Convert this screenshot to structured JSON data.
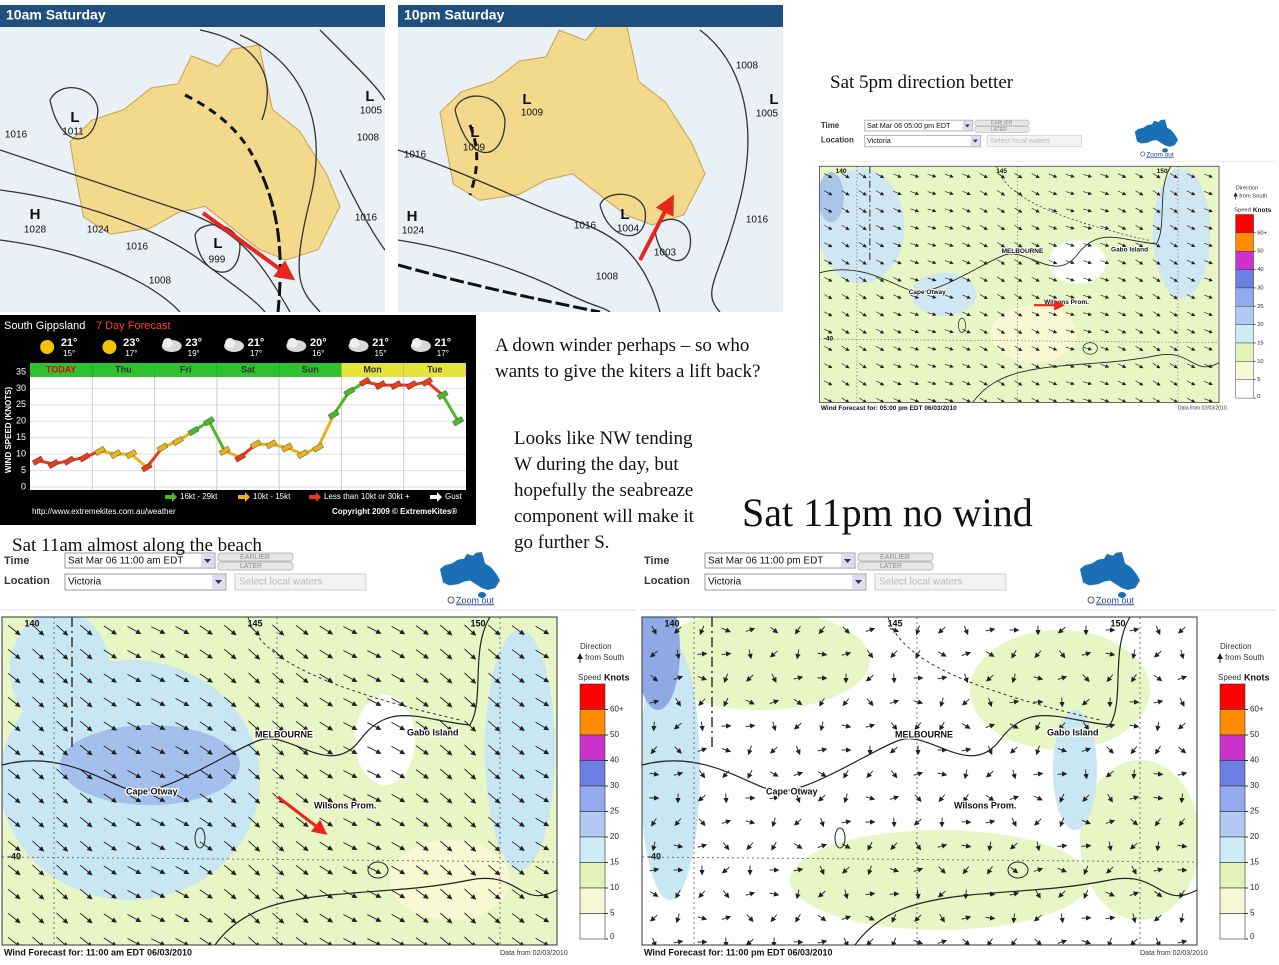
{
  "synoptic_charts": [
    {
      "title": "10am Saturday",
      "labels": [
        "L",
        1011,
        1016,
        "H",
        1028,
        1024,
        1016,
        1008,
        "L",
        999,
        "L",
        1005,
        1008,
        1016
      ]
    },
    {
      "title": "10pm Saturday",
      "labels": [
        "L",
        1009,
        "L",
        1009,
        1016,
        "H",
        1024,
        1016,
        "L",
        1004,
        1008,
        "L",
        1005,
        1008,
        1016,
        1003
      ]
    }
  ],
  "forecast": {
    "title": "South Gippsland",
    "subtitle": "7 Day Forecast",
    "days": [
      {
        "name": "TODAY",
        "high": "21°",
        "low": "15°",
        "color": "#2fc12f"
      },
      {
        "name": "Thu",
        "high": "23°",
        "low": "17°",
        "color": "#2fc12f"
      },
      {
        "name": "Fri",
        "high": "23°",
        "low": "19°",
        "color": "#2fc12f"
      },
      {
        "name": "Sat",
        "high": "21°",
        "low": "17°",
        "color": "#2fc12f"
      },
      {
        "name": "Sun",
        "high": "20°",
        "low": "16°",
        "color": "#2fc12f"
      },
      {
        "name": "Mon",
        "high": "21°",
        "low": "15°",
        "color": "#e4e43a"
      },
      {
        "name": "Tue",
        "high": "21°",
        "low": "17°",
        "color": "#e4e43a"
      }
    ],
    "y_label": "WIND SPEED (KNOTS)",
    "ylim": [
      0,
      35
    ],
    "yticks": [
      0,
      5,
      10,
      15,
      20,
      25,
      30,
      35
    ],
    "wind_speed": [
      8,
      7,
      8,
      9,
      11,
      10,
      10,
      6,
      12,
      14,
      17,
      20,
      11,
      9,
      13,
      13,
      12,
      10,
      12,
      22,
      29,
      32,
      31,
      31,
      31,
      32,
      28,
      20
    ],
    "wind_colors": [
      "#e63b1e",
      "#e63b1e",
      "#e63b1e",
      "#e63b1e",
      "#e8b21a",
      "#e8b21a",
      "#e8b21a",
      "#e63b1e",
      "#e8b21a",
      "#e8b21a",
      "#4cb82a",
      "#4cb82a",
      "#e8b21a",
      "#e63b1e",
      "#e8b21a",
      "#e8b21a",
      "#e8b21a",
      "#e8b21a",
      "#e8b21a",
      "#4cb82a",
      "#4cb82a",
      "#e63b1e",
      "#e63b1e",
      "#e63b1e",
      "#e63b1e",
      "#e63b1e",
      "#4cb82a",
      "#4cb82a"
    ],
    "legend": [
      {
        "label": "16kt - 29kt",
        "color": "#4cb82a"
      },
      {
        "label": "10kt - 15kt",
        "color": "#e8b21a"
      },
      {
        "label": "Less than 10kt or 30kt +",
        "color": "#e63b1e"
      },
      {
        "label": "Gust",
        "color": "#ffffff"
      }
    ],
    "url": "http://www.extremekites.com.au/weather",
    "copyright": "Copyright 2009 © ExtremeKites®"
  },
  "annotations": {
    "sat_5pm": "Sat 5pm direction better",
    "down_winder": "A down winder perhaps – so who wants to give the kiters a lift back?",
    "looks_like": "Looks like NW tending W during the day, but hopefully the seabreaze component will make it go further S.",
    "sat_11pm": "Sat 11pm no wind",
    "sat_11am": "Sat 11am almost along the beach"
  },
  "wind_map": {
    "time_label": "Time",
    "location_label": "Location",
    "earlier": "EARLIER",
    "later": "LATER",
    "waters": "Select local waters",
    "zoom": "Zoom out",
    "lons": [
      140,
      145,
      150
    ],
    "lat": -40,
    "places": [
      "MELBOURNE",
      "Gabo Island",
      "Cape Otway",
      "Wilsons Prom."
    ],
    "direction": "Direction",
    "from_south": "from South",
    "speed": "Speed",
    "knots": "Knots",
    "scale": [
      {
        "value": 60,
        "label": "60+"
      },
      50,
      40,
      30,
      25,
      20,
      15,
      10,
      5,
      0
    ],
    "scale_colors": [
      "#ff0000",
      "#ff8c00",
      "#cc33cc",
      "#6b7fe3",
      "#93a9ee",
      "#b4c8f4",
      "#cdeaf7",
      "#e3f3b8",
      "#f7f9d4",
      "#ffffff"
    ]
  },
  "wind_panels": [
    {
      "time": "Sat Mar 06 05:00 pm EDT",
      "location": "Victoria",
      "footer": "Wind Forecast for: 05:00 pm EDT 06/03/2010",
      "data_from": "Data from 02/03/2010"
    },
    {
      "time": "Sat Mar 06 11:00 am EDT",
      "location": "Victoria",
      "footer": "Wind Forecast for: 11:00 am EDT 06/03/2010",
      "data_from": "Data from 02/03/2010"
    },
    {
      "time": "Sat Mar 06 11:00 pm EDT",
      "location": "Victoria",
      "footer": "Wind Forecast for: 11:00 pm EDT 06/03/2010",
      "data_from": "Data from 02/03/2010"
    }
  ]
}
